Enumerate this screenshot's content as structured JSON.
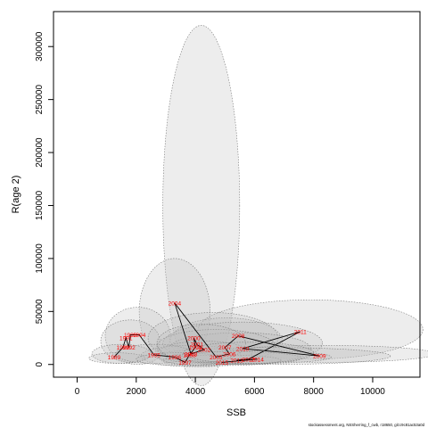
{
  "chart_data": {
    "type": "scatter",
    "xlabel": "SSB",
    "ylabel": "R(age 2)",
    "xlim": [
      -800,
      11600
    ],
    "ylim": [
      -12000,
      333000
    ],
    "xticks": [
      0,
      2000,
      4000,
      6000,
      8000,
      10000
    ],
    "yticks": [
      0,
      50000,
      100000,
      150000,
      200000,
      250000,
      300000
    ],
    "grid": false,
    "point_color": "#ff0000",
    "line_color": "#000000",
    "ellipse_fill": "#bdbdbd",
    "points": [
      {
        "year": "1989",
        "x": 1250,
        "y": 7000
      },
      {
        "year": "1990",
        "x": 1550,
        "y": 16000
      },
      {
        "year": "1991",
        "x": 1650,
        "y": 25000
      },
      {
        "year": "1992",
        "x": 1750,
        "y": 16000
      },
      {
        "year": "1993",
        "x": 1800,
        "y": 28000
      },
      {
        "year": "1994",
        "x": 2100,
        "y": 28000
      },
      {
        "year": "1995",
        "x": 2600,
        "y": 9000
      },
      {
        "year": "1996",
        "x": 3300,
        "y": 7000
      },
      {
        "year": "1997",
        "x": 3650,
        "y": 2000
      },
      {
        "year": "1998",
        "x": 3800,
        "y": 9000
      },
      {
        "year": "1999",
        "x": 4000,
        "y": 16000
      },
      {
        "year": "2000",
        "x": 3950,
        "y": 25000
      },
      {
        "year": "2001",
        "x": 4050,
        "y": 19000
      },
      {
        "year": "2002",
        "x": 4300,
        "y": 14000
      },
      {
        "year": "2003",
        "x": 3850,
        "y": 10000
      },
      {
        "year": "2004",
        "x": 3300,
        "y": 58000
      },
      {
        "year": "2005",
        "x": 4700,
        "y": 7000
      },
      {
        "year": "2006",
        "x": 5150,
        "y": 10000
      },
      {
        "year": "2007",
        "x": 5000,
        "y": 16000
      },
      {
        "year": "2008",
        "x": 5450,
        "y": 27000
      },
      {
        "year": "2009",
        "x": 8200,
        "y": 8000
      },
      {
        "year": "2010",
        "x": 5600,
        "y": 15000
      },
      {
        "year": "2011",
        "x": 7550,
        "y": 31000
      },
      {
        "year": "2012",
        "x": 5800,
        "y": 5000
      },
      {
        "year": "2013",
        "x": 5400,
        "y": 4000
      },
      {
        "year": "2014",
        "x": 6100,
        "y": 5000
      },
      {
        "year": "2015",
        "x": 4900,
        "y": 2000
      }
    ],
    "ellipses": [
      {
        "cx": 4200,
        "cy": 150000,
        "rx": 1300,
        "ry": 170000
      },
      {
        "cx": 3300,
        "cy": 50000,
        "rx": 1200,
        "ry": 50000
      },
      {
        "cx": 7900,
        "cy": 33000,
        "rx": 3800,
        "ry": 28000
      },
      {
        "cx": 2050,
        "cy": 27000,
        "rx": 1100,
        "ry": 27000
      },
      {
        "cx": 1800,
        "cy": 22000,
        "rx": 1000,
        "ry": 20000
      },
      {
        "cx": 5050,
        "cy": 22000,
        "rx": 1900,
        "ry": 22000
      },
      {
        "cx": 4600,
        "cy": 25000,
        "rx": 2200,
        "ry": 24000
      },
      {
        "cx": 5600,
        "cy": 20000,
        "rx": 2700,
        "ry": 20000
      },
      {
        "cx": 5500,
        "cy": 15000,
        "rx": 2400,
        "ry": 15000
      },
      {
        "cx": 4700,
        "cy": 17000,
        "rx": 2000,
        "ry": 16000
      },
      {
        "cx": 8400,
        "cy": 10000,
        "rx": 3700,
        "ry": 8000
      },
      {
        "cx": 6600,
        "cy": 8000,
        "rx": 4000,
        "ry": 8000
      },
      {
        "cx": 3850,
        "cy": 8000,
        "rx": 1700,
        "ry": 10000
      },
      {
        "cx": 4300,
        "cy": 10000,
        "rx": 1600,
        "ry": 12000
      },
      {
        "cx": 1500,
        "cy": 10000,
        "rx": 1000,
        "ry": 9000
      },
      {
        "cx": 1350,
        "cy": 6000,
        "rx": 950,
        "ry": 5000
      },
      {
        "cx": 2600,
        "cy": 10000,
        "rx": 1300,
        "ry": 9000
      },
      {
        "cx": 5300,
        "cy": 6000,
        "rx": 2300,
        "ry": 6000
      },
      {
        "cx": 4900,
        "cy": 4000,
        "rx": 2000,
        "ry": 5000
      },
      {
        "cx": 3500,
        "cy": 5000,
        "rx": 1500,
        "ry": 6000
      },
      {
        "cx": 6000,
        "cy": 7000,
        "rx": 2600,
        "ry": 6000
      },
      {
        "cx": 4200,
        "cy": 20000,
        "rx": 1500,
        "ry": 18000
      },
      {
        "cx": 5800,
        "cy": 11000,
        "rx": 2200,
        "ry": 10000
      }
    ]
  },
  "footer": {
    "source_text": "stockassessment.org, NSSherring_f_cwb, r18650, git:c9c81ac53a0d"
  }
}
